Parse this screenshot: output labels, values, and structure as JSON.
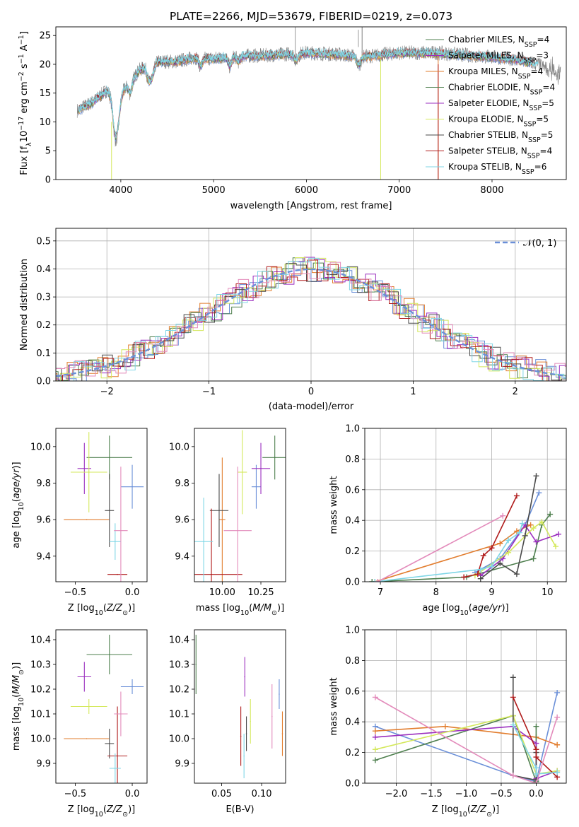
{
  "figure": {
    "title": "PLATE=2266, MJD=53679, FIBERID=0219, z=0.073"
  },
  "series_names": [
    "Chabrier MILES, N_SSP=4",
    "Salpeter MILES, N_SSP=3",
    "Kroupa MILES, N_SSP=4",
    "Chabrier ELODIE, N_SSP=4",
    "Salpeter ELODIE, N_SSP=5",
    "Kroupa ELODIE, N_SSP=5",
    "Chabrier STELIB, N_SSP=5",
    "Salpeter STELIB, N_SSP=4",
    "Kroupa STELIB, N_SSP=6"
  ],
  "colors": [
    "#6a8fd8",
    "#e27d2e",
    "#4e7f4e",
    "#9b2fbf",
    "#d4e85c",
    "#4a4a4a",
    "#b01c1c",
    "#7fd6e6",
    "#e38bbb",
    "#808080"
  ],
  "chart_data": [
    {
      "type": "line",
      "panel": "spectrum",
      "title": "PLATE=2266, MJD=53679, FIBERID=0219, z=0.073",
      "xlabel": "wavelength [Angstrom, rest frame]",
      "ylabel": "Flux [f_λ 10^-17 erg cm^-2 s^-1 A^-1]",
      "xlim": [
        3300,
        8800
      ],
      "ylim": [
        0,
        26.5
      ],
      "xticks": [
        4000,
        5000,
        6000,
        7000,
        8000
      ],
      "yticks": [
        0,
        5,
        10,
        15,
        20,
        25
      ],
      "legend": [
        {
          "label": "Chabrier MILES, N",
          "sub": "SSP",
          "tail": "=4",
          "color": "#4e7f4e"
        },
        {
          "label": "Salpeter MILES, N",
          "sub": "SSP",
          "tail": "=3",
          "color": "#9b2fbf"
        },
        {
          "label": "Kroupa MILES, N",
          "sub": "SSP",
          "tail": "=4",
          "color": "#e27d2e"
        },
        {
          "label": "Chabrier ELODIE, N",
          "sub": "SSP",
          "tail": "=4",
          "color": "#4e7f4e"
        },
        {
          "label": "Salpeter ELODIE, N",
          "sub": "SSP",
          "tail": "=5",
          "color": "#9b2fbf"
        },
        {
          "label": "Kroupa ELODIE, N",
          "sub": "SSP",
          "tail": "=5",
          "color": "#d4e85c"
        },
        {
          "label": "Chabrier STELIB, N",
          "sub": "SSP",
          "tail": "=5",
          "color": "#4a4a4a"
        },
        {
          "label": "Salpeter STELIB, N",
          "sub": "SSP",
          "tail": "=4",
          "color": "#b01c1c"
        },
        {
          "label": "Kroupa STELIB, N",
          "sub": "SSP",
          "tail": "=6",
          "color": "#7fd6e6"
        }
      ],
      "legend_placement": "right",
      "continuum": [
        [
          3530,
          12
        ],
        [
          3700,
          13.5
        ],
        [
          3850,
          15.5
        ],
        [
          3950,
          13
        ],
        [
          4050,
          16
        ],
        [
          4200,
          19
        ],
        [
          4400,
          20.5
        ],
        [
          4600,
          20.5
        ],
        [
          4800,
          21.2
        ],
        [
          5000,
          21
        ],
        [
          5200,
          21.5
        ],
        [
          5500,
          21.5
        ],
        [
          5800,
          21.8
        ],
        [
          6000,
          22
        ],
        [
          6300,
          21.8
        ],
        [
          6600,
          21.3
        ],
        [
          7000,
          22
        ],
        [
          7400,
          22
        ],
        [
          7800,
          21.5
        ],
        [
          8200,
          21
        ],
        [
          8500,
          20
        ],
        [
          8720,
          18
        ]
      ],
      "observed_color": "#808080"
    },
    {
      "type": "line",
      "panel": "residual_histogram",
      "xlabel": "(data-model)/error",
      "ylabel": "Normed distribution",
      "xlim": [
        -2.5,
        2.5
      ],
      "ylim": [
        0,
        0.545
      ],
      "xticks": [
        -2,
        -1,
        0,
        1,
        2
      ],
      "yticks": [
        0.0,
        0.1,
        0.2,
        0.3,
        0.4,
        0.5
      ],
      "grid": true,
      "legend": [
        {
          "label": "𝒩(0, 1)",
          "color": "#6a8fd8",
          "style": "dashed"
        }
      ],
      "legend_placement": "top-right",
      "gaussian": {
        "mean": 0,
        "sigma": 1
      }
    },
    {
      "type": "scatter",
      "panel": "age_vs_Z",
      "xlabel": "Z [log10(Z/Z⊙)]",
      "ylabel": "age [log10(age/yr)]",
      "xlim": [
        -0.67,
        0.13
      ],
      "ylim": [
        9.26,
        10.1
      ],
      "xticks": [
        -0.5,
        0.0
      ],
      "yticks": [
        9.4,
        9.6,
        9.8,
        10.0
      ],
      "points": [
        {
          "x": 0.0,
          "xerr": 0.1,
          "y": 9.78,
          "yerr": 0.12,
          "color": "#6a8fd8"
        },
        {
          "x": -0.4,
          "xerr": 0.2,
          "y": 9.6,
          "yerr": 0.0,
          "color": "#e27d2e"
        },
        {
          "x": -0.2,
          "xerr": 0.2,
          "y": 9.94,
          "yerr": 0.12,
          "color": "#4e7f4e"
        },
        {
          "x": -0.42,
          "xerr": 0.06,
          "y": 9.88,
          "yerr": 0.14,
          "color": "#9b2fbf"
        },
        {
          "x": -0.38,
          "xerr": 0.16,
          "y": 9.86,
          "yerr": 0.22,
          "color": "#d4e85c"
        },
        {
          "x": -0.2,
          "xerr": 0.04,
          "y": 9.65,
          "yerr": 0.2,
          "color": "#4a4a4a"
        },
        {
          "x": -0.13,
          "xerr": 0.0,
          "y": 9.3,
          "yerr": 0.0,
          "color": "#b01c1c"
        },
        {
          "x": -0.15,
          "xerr": 0.05,
          "y": 9.48,
          "yerr": 0.1,
          "color": "#7fd6e6"
        },
        {
          "x": -0.1,
          "xerr": 0.06,
          "y": 9.54,
          "yerr": 0.35,
          "color": "#e38bbb"
        }
      ]
    },
    {
      "type": "scatter",
      "panel": "age_vs_mass",
      "xlabel": "mass [log10(M/M⊙)]",
      "ylabel": "",
      "xlim": [
        9.82,
        10.41
      ],
      "ylim": [
        9.26,
        10.1
      ],
      "xticks": [
        10.0,
        10.25
      ],
      "yticks": [
        9.4,
        9.6,
        9.8,
        10.0
      ],
      "points": [
        {
          "x": 10.22,
          "xerr": 0.03,
          "y": 9.78,
          "yerr": 0.12,
          "color": "#6a8fd8"
        },
        {
          "x": 10.0,
          "xerr": 0.02,
          "y": 9.6,
          "yerr": 0.34,
          "color": "#e27d2e"
        },
        {
          "x": 10.34,
          "xerr": 0.08,
          "y": 9.94,
          "yerr": 0.12,
          "color": "#4e7f4e"
        },
        {
          "x": 10.25,
          "xerr": 0.06,
          "y": 9.88,
          "yerr": 0.14,
          "color": "#9b2fbf"
        },
        {
          "x": 10.13,
          "xerr": 0.03,
          "y": 9.86,
          "yerr": 0.23,
          "color": "#d4e85c"
        },
        {
          "x": 9.98,
          "xerr": 0.06,
          "y": 9.65,
          "yerr": 0.2,
          "color": "#4a4a4a"
        },
        {
          "x": 9.93,
          "xerr": 0.2,
          "y": 9.3,
          "yerr": 0.36,
          "color": "#b01c1c"
        },
        {
          "x": 9.88,
          "xerr": 0.06,
          "y": 9.48,
          "yerr": 0.24,
          "color": "#7fd6e6"
        },
        {
          "x": 10.1,
          "xerr": 0.09,
          "y": 9.54,
          "yerr": 0.35,
          "color": "#e38bbb"
        }
      ]
    },
    {
      "type": "line",
      "panel": "mass_weight_vs_age",
      "xlabel": "age [log10(age/yr)]",
      "ylabel": "mass weight",
      "xlim": [
        6.72,
        10.34
      ],
      "ylim": [
        0,
        1
      ],
      "xticks": [
        7,
        8,
        9,
        10
      ],
      "yticks": [
        0.0,
        0.2,
        0.4,
        0.6,
        0.8,
        1.0
      ],
      "grid": true,
      "series": [
        {
          "color": "#6a8fd8",
          "points": [
            [
              8.7,
              0.06
            ],
            [
              9.15,
              0.15
            ],
            [
              9.6,
              0.37
            ],
            [
              9.85,
              0.58
            ]
          ]
        },
        {
          "color": "#e27d2e",
          "points": [
            [
              6.9,
              0.0
            ],
            [
              9.15,
              0.25
            ],
            [
              9.45,
              0.33
            ],
            [
              9.7,
              0.37
            ]
          ]
        },
        {
          "color": "#4e7f4e",
          "points": [
            [
              6.85,
              0.0
            ],
            [
              8.55,
              0.03
            ],
            [
              9.75,
              0.15
            ],
            [
              9.9,
              0.37
            ],
            [
              10.05,
              0.44
            ]
          ]
        },
        {
          "color": "#9b2fbf",
          "points": [
            [
              8.8,
              0.04
            ],
            [
              9.2,
              0.15
            ],
            [
              9.6,
              0.37
            ],
            [
              9.8,
              0.26
            ],
            [
              10.2,
              0.31
            ]
          ]
        },
        {
          "color": "#d4e85c",
          "points": [
            [
              8.7,
              0.04
            ],
            [
              9.3,
              0.19
            ],
            [
              9.75,
              0.35
            ],
            [
              9.9,
              0.39
            ],
            [
              10.15,
              0.23
            ]
          ]
        },
        {
          "color": "#4a4a4a",
          "points": [
            [
              8.8,
              0.02
            ],
            [
              9.15,
              0.12
            ],
            [
              9.45,
              0.05
            ],
            [
              9.6,
              0.3
            ],
            [
              9.8,
              0.69
            ]
          ]
        },
        {
          "color": "#b01c1c",
          "points": [
            [
              8.5,
              0.03
            ],
            [
              8.75,
              0.05
            ],
            [
              8.85,
              0.17
            ],
            [
              9.0,
              0.22
            ],
            [
              9.45,
              0.56
            ]
          ]
        },
        {
          "color": "#7fd6e6",
          "points": [
            [
              6.9,
              0.0
            ],
            [
              8.8,
              0.08
            ],
            [
              9.0,
              0.1
            ],
            [
              9.3,
              0.27
            ],
            [
              9.5,
              0.32
            ],
            [
              9.55,
              0.38
            ]
          ]
        },
        {
          "color": "#e38bbb",
          "points": [
            [
              6.95,
              0.0
            ],
            [
              9.2,
              0.43
            ]
          ]
        }
      ]
    },
    {
      "type": "scatter",
      "panel": "mass_vs_Z",
      "xlabel": "Z [log10(Z/Z⊙)]",
      "ylabel": "mass [log10(M/M⊙)]",
      "xlim": [
        -0.67,
        0.13
      ],
      "ylim": [
        9.82,
        10.44
      ],
      "xticks": [
        -0.5,
        0.0
      ],
      "yticks": [
        9.9,
        10.0,
        10.1,
        10.2,
        10.3,
        10.4
      ],
      "points": [
        {
          "x": 0.0,
          "xerr": 0.1,
          "y": 10.21,
          "yerr": 0.03,
          "color": "#6a8fd8"
        },
        {
          "x": -0.4,
          "xerr": 0.2,
          "y": 10.0,
          "yerr": 0.0,
          "color": "#e27d2e"
        },
        {
          "x": -0.2,
          "xerr": 0.2,
          "y": 10.34,
          "yerr": 0.08,
          "color": "#4e7f4e"
        },
        {
          "x": -0.42,
          "xerr": 0.06,
          "y": 10.25,
          "yerr": 0.06,
          "color": "#9b2fbf"
        },
        {
          "x": -0.38,
          "xerr": 0.16,
          "y": 10.13,
          "yerr": 0.03,
          "color": "#d4e85c"
        },
        {
          "x": -0.2,
          "xerr": 0.04,
          "y": 9.98,
          "yerr": 0.06,
          "color": "#4a4a4a"
        },
        {
          "x": -0.13,
          "xerr": 0.0,
          "y": 9.93,
          "yerr": 0.2,
          "color": "#b01c1c"
        },
        {
          "x": -0.15,
          "xerr": 0.05,
          "y": 9.88,
          "yerr": 0.06,
          "color": "#7fd6e6"
        },
        {
          "x": -0.1,
          "xerr": 0.06,
          "y": 10.1,
          "yerr": 0.09,
          "color": "#e38bbb"
        }
      ]
    },
    {
      "type": "scatter",
      "panel": "mass_vs_EBV",
      "xlabel": "E(B-V)",
      "ylabel": "",
      "xlim": [
        0.016,
        0.13
      ],
      "ylim": [
        9.82,
        10.44
      ],
      "xticks": [
        0.05,
        0.1
      ],
      "yticks": [
        9.9,
        10.0,
        10.1,
        10.2,
        10.3,
        10.4
      ],
      "points": [
        {
          "x": 0.122,
          "y": 10.18,
          "yerr": 0.06,
          "color": "#6a8fd8"
        },
        {
          "x": 0.126,
          "y": 10.02,
          "yerr": 0.09,
          "color": "#e27d2e"
        },
        {
          "x": 0.018,
          "y": 10.3,
          "yerr": 0.12,
          "color": "#4e7f4e"
        },
        {
          "x": 0.079,
          "y": 10.25,
          "yerr": 0.08,
          "color": "#9b2fbf"
        },
        {
          "x": 0.086,
          "y": 10.07,
          "yerr": 0.09,
          "color": "#d4e85c"
        },
        {
          "x": 0.081,
          "y": 10.02,
          "yerr": 0.07,
          "color": "#4a4a4a"
        },
        {
          "x": 0.074,
          "y": 10.01,
          "yerr": 0.12,
          "color": "#b01c1c"
        },
        {
          "x": 0.078,
          "y": 9.93,
          "yerr": 0.09,
          "color": "#7fd6e6"
        },
        {
          "x": 0.113,
          "y": 10.09,
          "yerr": 0.13,
          "color": "#e38bbb"
        }
      ]
    },
    {
      "type": "line",
      "panel": "mass_weight_vs_Z",
      "xlabel": "Z [log10(Z/Z⊙)]",
      "ylabel": "mass weight",
      "xlim": [
        -2.45,
        0.43
      ],
      "ylim": [
        0,
        1
      ],
      "xticks": [
        -2.0,
        -1.5,
        -1.0,
        -0.5,
        0.0
      ],
      "yticks": [
        0.0,
        0.2,
        0.4,
        0.6,
        0.8,
        1.0
      ],
      "grid": true,
      "series": [
        {
          "color": "#6a8fd8",
          "points": [
            [
              -2.3,
              0.37
            ],
            [
              -0.33,
              0.05
            ],
            [
              0.0,
              0.01
            ],
            [
              0.3,
              0.59
            ]
          ]
        },
        {
          "color": "#e27d2e",
          "points": [
            [
              -2.3,
              0.34
            ],
            [
              -1.3,
              0.37
            ],
            [
              0.0,
              0.3
            ],
            [
              0.3,
              0.25
            ]
          ]
        },
        {
          "color": "#4e7f4e",
          "points": [
            [
              -2.3,
              0.15
            ],
            [
              -0.33,
              0.44
            ],
            [
              0.0,
              0.01
            ],
            [
              0.0,
              0.37
            ]
          ]
        },
        {
          "color": "#9b2fbf",
          "points": [
            [
              -2.3,
              0.3
            ],
            [
              -0.33,
              0.37
            ],
            [
              0.0,
              0.26
            ],
            [
              0.0,
              0.03
            ],
            [
              0.3,
              0.08
            ]
          ]
        },
        {
          "color": "#d4e85c",
          "points": [
            [
              -2.3,
              0.22
            ],
            [
              -0.33,
              0.44
            ],
            [
              0.0,
              0.06
            ],
            [
              0.3,
              0.08
            ]
          ]
        },
        {
          "color": "#4a4a4a",
          "points": [
            [
              -0.33,
              0.69
            ],
            [
              -0.33,
              0.05
            ],
            [
              0.0,
              0.02
            ],
            [
              0.0,
              0.2
            ]
          ]
        },
        {
          "color": "#b01c1c",
          "points": [
            [
              -0.33,
              0.56
            ],
            [
              0.0,
              0.22
            ],
            [
              0.0,
              0.17
            ],
            [
              0.3,
              0.04
            ]
          ]
        },
        {
          "color": "#7fd6e6",
          "points": [
            [
              -0.33,
              0.38
            ],
            [
              0.0,
              0.1
            ],
            [
              0.0,
              0.06
            ],
            [
              0.3,
              0.07
            ]
          ]
        },
        {
          "color": "#e38bbb",
          "points": [
            [
              -2.3,
              0.56
            ],
            [
              -0.33,
              0.05
            ],
            [
              0.0,
              0.0
            ],
            [
              0.3,
              0.43
            ]
          ]
        }
      ]
    }
  ]
}
